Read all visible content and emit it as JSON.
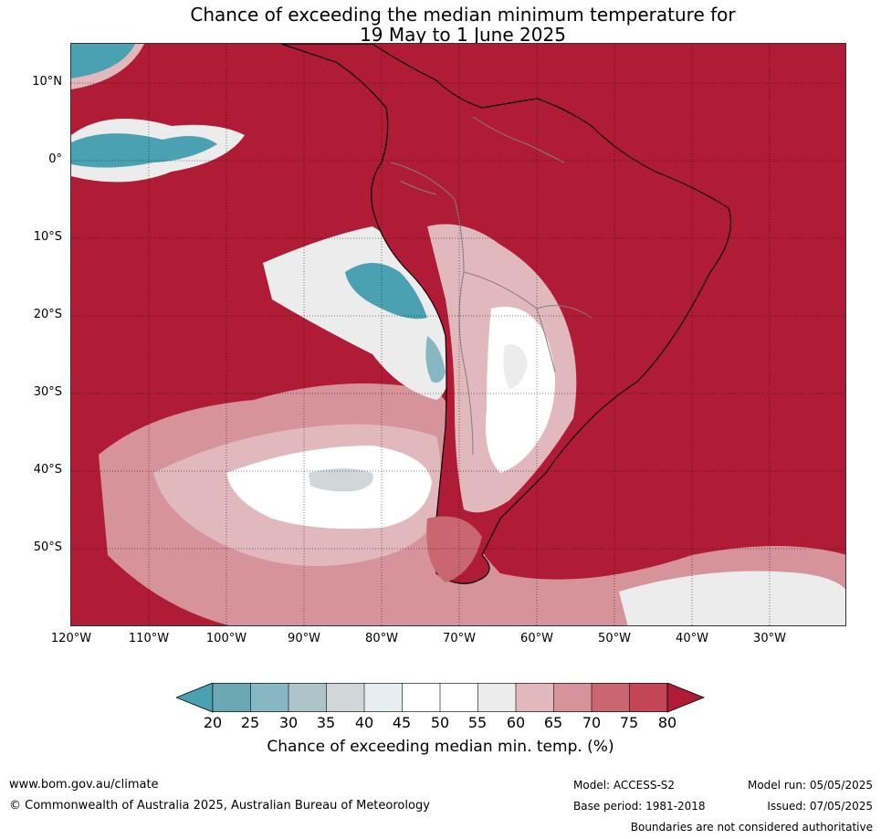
{
  "title": {
    "line1": "Chance of exceeding the median minimum temperature for",
    "line2": "19 May to 1 June 2025"
  },
  "map": {
    "lat_labels": [
      "10°N",
      "0°",
      "10°S",
      "20°S",
      "30°S",
      "40°S",
      "50°S"
    ],
    "lon_labels": [
      "120°W",
      "110°W",
      "100°W",
      "90°W",
      "80°W",
      "70°W",
      "60°W",
      "50°W",
      "40°W",
      "30°W"
    ],
    "colors": {
      "very_warm": "#b01b36",
      "warm_75": "#c24656",
      "warm_70": "#c96670",
      "warm_65": "#d6939a",
      "warm_60": "#e1b8bb",
      "neutral_55": "#ececec",
      "neutral_50": "#ffffff",
      "cool_40": "#e7eef1",
      "cool_35": "#d1d6d8",
      "cool_30": "#acc4ca",
      "cool_25": "#87b7c3",
      "cool_20": "#6ba8b6",
      "very_cool": "#4aa1b2",
      "coastline": "#000000",
      "border": "#808080"
    }
  },
  "colorbar": {
    "ticks": [
      "20",
      "25",
      "30",
      "35",
      "40",
      "45",
      "50",
      "55",
      "60",
      "65",
      "70",
      "75",
      "80"
    ],
    "label": "Chance of exceeding median min. temp. (%)"
  },
  "footer": {
    "website": "www.bom.gov.au/climate",
    "copyright": "© Commonwealth of Australia 2025, Australian Bureau of Meteorology",
    "model": "Model: ACCESS-S2",
    "base_period": "Base period: 1981-2018",
    "model_run": "Model run: 05/05/2025",
    "issued": "Issued: 07/05/2025",
    "boundaries": "Boundaries are not considered authoritative"
  }
}
